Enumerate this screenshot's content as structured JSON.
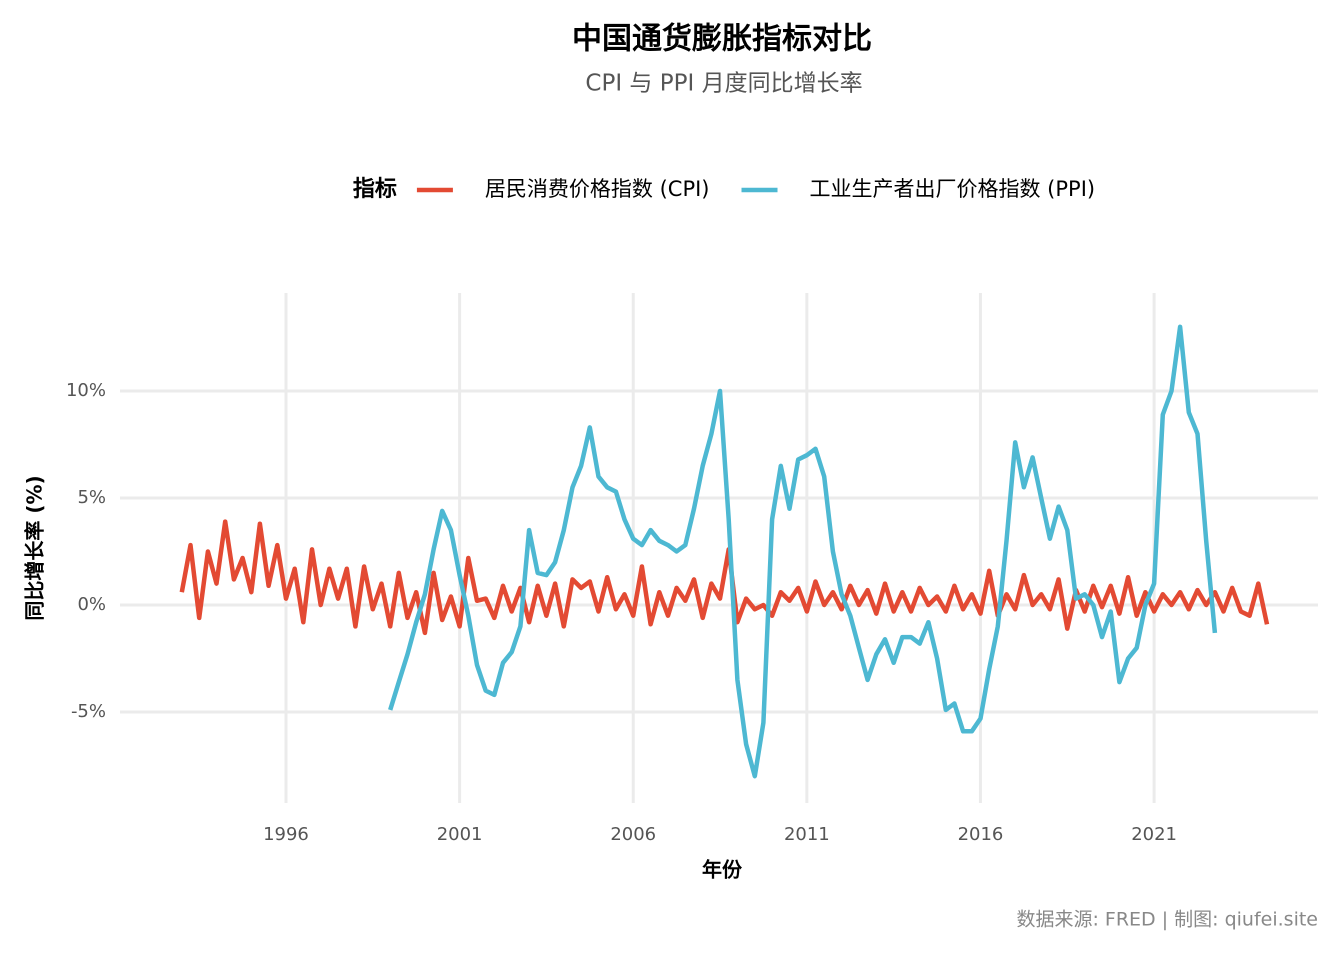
{
  "chart_data": {
    "type": "line",
    "title": "中国通货膨胀指标对比",
    "subtitle": "CPI 与 PPI 月度同比增长率",
    "legend_title": "指标",
    "x_label": "年份",
    "y_label": "同比增长率 (%)",
    "caption": "数据来源: FRED | 制图: qiufei.site",
    "grid": true,
    "legend_position": "top",
    "xlim": [
      1991.22,
      2025.72
    ],
    "ylim": [
      -9.25,
      14.58
    ],
    "xticks": [
      1996,
      2001,
      2006,
      2011,
      2016,
      2021
    ],
    "yticks": [
      {
        "value": -5,
        "label": "-5%"
      },
      {
        "value": 0,
        "label": "0%"
      },
      {
        "value": 5,
        "label": "5%"
      },
      {
        "value": 10,
        "label": "10%"
      }
    ],
    "x": [
      1993,
      1993.25,
      1993.5,
      1993.75,
      1994,
      1994.25,
      1994.5,
      1994.75,
      1995,
      1995.25,
      1995.5,
      1995.75,
      1996,
      1996.25,
      1996.5,
      1996.75,
      1997,
      1997.25,
      1997.5,
      1997.75,
      1998,
      1998.25,
      1998.5,
      1998.75,
      1999,
      1999.25,
      1999.5,
      1999.75,
      2000,
      2000.25,
      2000.5,
      2000.75,
      2001,
      2001.25,
      2001.5,
      2001.75,
      2002,
      2002.25,
      2002.5,
      2002.75,
      2003,
      2003.25,
      2003.5,
      2003.75,
      2004,
      2004.25,
      2004.5,
      2004.75,
      2005,
      2005.25,
      2005.5,
      2005.75,
      2006,
      2006.25,
      2006.5,
      2006.75,
      2007,
      2007.25,
      2007.5,
      2007.75,
      2008,
      2008.25,
      2008.5,
      2008.75,
      2009,
      2009.25,
      2009.5,
      2009.75,
      2010,
      2010.25,
      2010.5,
      2010.75,
      2011,
      2011.25,
      2011.5,
      2011.75,
      2012,
      2012.25,
      2012.5,
      2012.75,
      2013,
      2013.25,
      2013.5,
      2013.75,
      2014,
      2014.25,
      2014.5,
      2014.75,
      2015,
      2015.25,
      2015.5,
      2015.75,
      2016,
      2016.25,
      2016.5,
      2016.75,
      2017,
      2017.25,
      2017.5,
      2017.75,
      2018,
      2018.25,
      2018.5,
      2018.75,
      2019,
      2019.25,
      2019.5,
      2019.75,
      2020,
      2020.25,
      2020.5,
      2020.75,
      2021,
      2021.25,
      2021.5,
      2021.75,
      2022,
      2022.25,
      2022.5,
      2022.75,
      2023,
      2023.25,
      2023.5,
      2023.75,
      2024,
      2024.25
    ],
    "series": [
      {
        "name": "居民消费价格指数 (CPI)",
        "color": "#e34a33",
        "values": [
          0.6,
          2.8,
          -0.6,
          2.5,
          1.0,
          3.9,
          1.2,
          2.2,
          0.6,
          3.8,
          0.9,
          2.8,
          0.3,
          1.7,
          -0.8,
          2.6,
          0.0,
          1.7,
          0.3,
          1.7,
          -1.0,
          1.8,
          -0.2,
          1.0,
          -1.0,
          1.5,
          -0.6,
          0.6,
          -1.3,
          1.5,
          -0.7,
          0.4,
          -1.0,
          2.2,
          0.2,
          0.3,
          -0.6,
          0.9,
          -0.3,
          0.8,
          -0.8,
          0.9,
          -0.5,
          1.0,
          -1.0,
          1.2,
          0.8,
          1.1,
          -0.3,
          1.3,
          -0.2,
          0.5,
          -0.5,
          1.8,
          -0.9,
          0.6,
          -0.5,
          0.8,
          0.2,
          1.2,
          -0.6,
          1.0,
          0.3,
          2.6,
          -0.8,
          0.3,
          -0.2,
          0.0,
          -0.5,
          0.6,
          0.2,
          0.8,
          -0.3,
          1.1,
          0.0,
          0.6,
          -0.2,
          0.9,
          0.0,
          0.7,
          -0.4,
          1.0,
          -0.3,
          0.6,
          -0.3,
          0.8,
          0.0,
          0.4,
          -0.3,
          0.9,
          -0.2,
          0.5,
          -0.4,
          1.6,
          -0.5,
          0.5,
          -0.2,
          1.4,
          0.0,
          0.5,
          -0.2,
          1.2,
          -1.1,
          0.7,
          -0.3,
          0.9,
          -0.1,
          0.9,
          -0.4,
          1.3,
          -0.5,
          0.6,
          -0.3,
          0.5,
          0.0,
          0.6,
          -0.2,
          0.7,
          0.0,
          0.6,
          -0.3,
          0.8,
          -0.3,
          -0.5,
          1.0,
          -0.9
        ]
      },
      {
        "name": "工业生产者出厂价格指数 (PPI)",
        "color": "#4db8d2",
        "values": [
          null,
          null,
          null,
          null,
          null,
          null,
          null,
          null,
          null,
          null,
          null,
          null,
          null,
          null,
          null,
          null,
          null,
          null,
          null,
          null,
          null,
          null,
          null,
          null,
          -4.9,
          -3.6,
          -2.3,
          -0.8,
          0.5,
          2.6,
          4.4,
          3.5,
          1.4,
          -0.5,
          -2.8,
          -4.0,
          -4.2,
          -2.7,
          -2.2,
          -1.0,
          3.5,
          1.5,
          1.4,
          2.0,
          3.5,
          5.5,
          6.5,
          8.3,
          6.0,
          5.5,
          5.3,
          4.0,
          3.1,
          2.8,
          3.5,
          3.0,
          2.8,
          2.5,
          2.8,
          4.5,
          6.5,
          8.0,
          10.0,
          4.0,
          -3.5,
          -6.5,
          -8.0,
          -5.5,
          4.0,
          6.5,
          4.5,
          6.8,
          7.0,
          7.3,
          6.0,
          2.5,
          0.5,
          -0.5,
          -2.0,
          -3.5,
          -2.3,
          -1.6,
          -2.7,
          -1.5,
          -1.5,
          -1.8,
          -0.8,
          -2.5,
          -4.9,
          -4.6,
          -5.9,
          -5.9,
          -5.3,
          -3.0,
          -1.0,
          3.0,
          7.6,
          5.5,
          6.9,
          5.0,
          3.1,
          4.6,
          3.5,
          0.3,
          0.5,
          0.0,
          -1.5,
          -0.3,
          -3.6,
          -2.5,
          -2.0,
          0.0,
          1.0,
          8.9,
          10.0,
          13.0,
          9.0,
          8.0,
          3.0,
          -1.3,
          null,
          null,
          null,
          null,
          null,
          null
        ]
      }
    ]
  }
}
